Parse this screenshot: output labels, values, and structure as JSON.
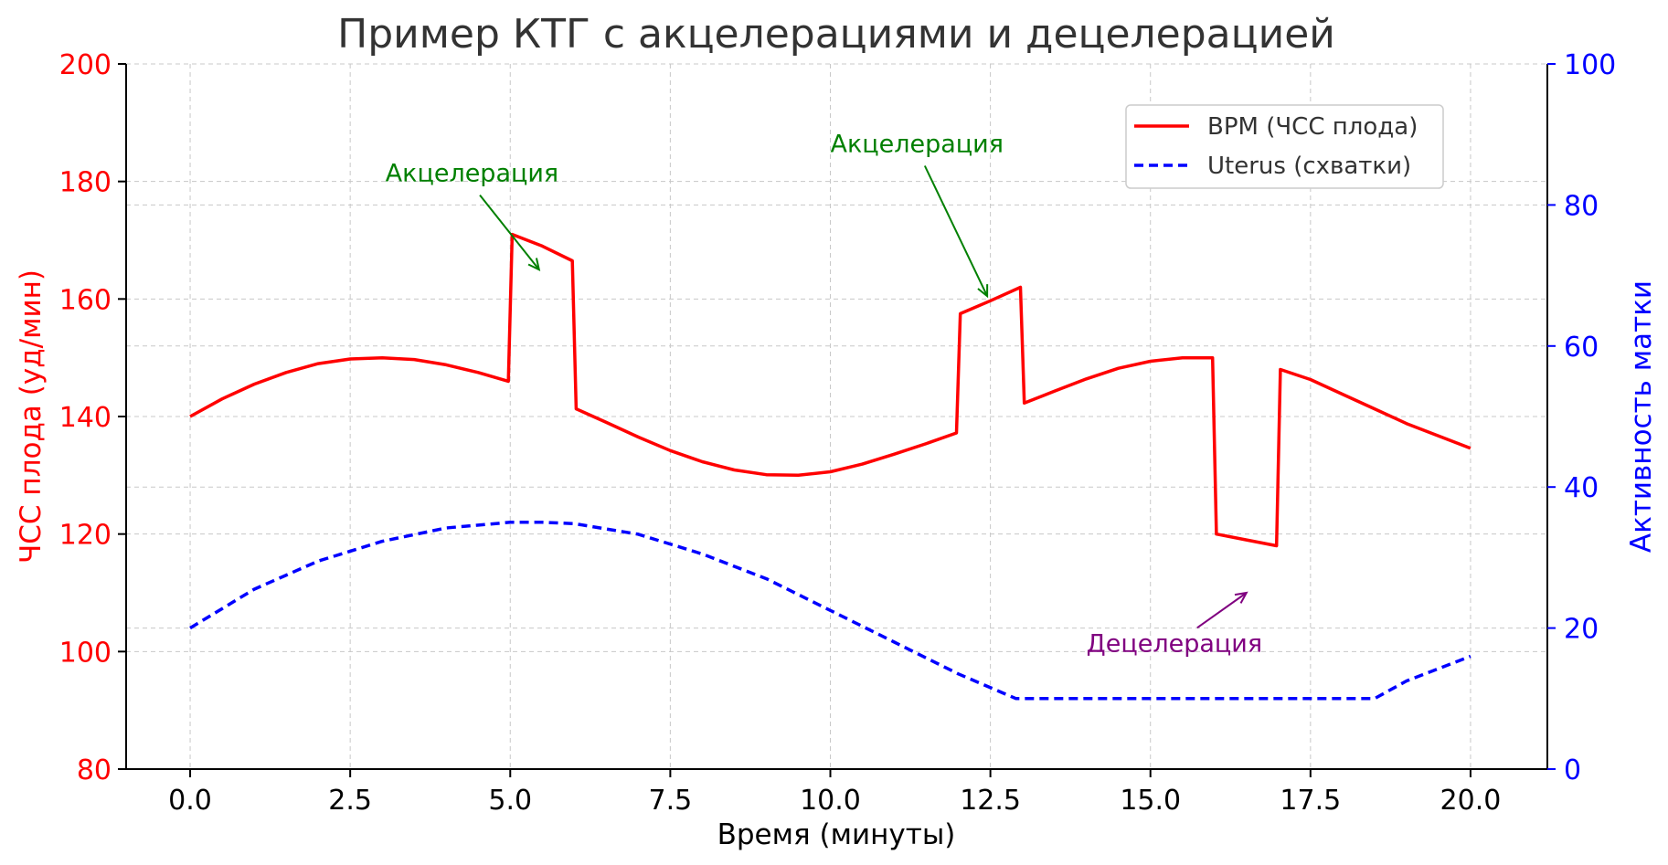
{
  "chart_data": {
    "type": "line",
    "title": "Пример КТГ с акцелерациями и децелерацией",
    "xlabel": "Время (минуты)",
    "ylabel_left": "ЧСС плода (уд/мин)",
    "ylabel_right": "Активность матки",
    "xlim": [
      -1,
      21.2
    ],
    "ylim_left": [
      80,
      200
    ],
    "ylim_right": [
      0,
      100
    ],
    "x_ticks": [
      0,
      2.5,
      5,
      7.5,
      10,
      12.5,
      15,
      17.5,
      20
    ],
    "x_tick_labels": [
      "0.0",
      "2.5",
      "5.0",
      "7.5",
      "10.0",
      "12.5",
      "15.0",
      "17.5",
      "20.0"
    ],
    "y_ticks_left": [
      80,
      100,
      120,
      140,
      160,
      180,
      200
    ],
    "y_ticks_right": [
      0,
      20,
      40,
      60,
      80,
      100
    ],
    "grid": true,
    "legend_position": "top-right",
    "colors": {
      "bpm": "#ff0000",
      "uterus": "#0000ff",
      "accel": "#008000",
      "decel": "#800080"
    },
    "series": [
      {
        "name": "BPM (ЧСС плода)",
        "axis": "left",
        "style": "solid",
        "x": [
          0,
          0.5,
          1,
          1.5,
          2,
          2.5,
          3,
          3.5,
          4,
          4.5,
          4.97,
          5.03,
          5.5,
          5.97,
          6.03,
          6.5,
          7,
          7.5,
          8,
          8.5,
          9,
          9.5,
          10,
          10.5,
          11,
          11.5,
          11.97,
          12.03,
          12.5,
          12.97,
          13.03,
          13.5,
          14,
          14.5,
          15,
          15.5,
          15.97,
          16.03,
          16.5,
          16.97,
          17.03,
          17.5,
          18,
          18.5,
          19,
          19.5,
          20
        ],
        "values": [
          140,
          143,
          145.5,
          147.5,
          149,
          149.8,
          150,
          149.7,
          148.8,
          147.5,
          146,
          171,
          169,
          166.5,
          141.3,
          139,
          136.5,
          134.2,
          132.3,
          130.9,
          130.1,
          130,
          130.6,
          131.9,
          133.6,
          135.4,
          137.2,
          157.5,
          159.7,
          162,
          142.3,
          144.3,
          146.4,
          148.2,
          149.4,
          150,
          150,
          120,
          119,
          118,
          148,
          146.3,
          143.8,
          141.3,
          138.8,
          136.7,
          134.6
        ]
      },
      {
        "name": "Uterus (схватки)",
        "axis": "right",
        "style": "dashed",
        "x": [
          0,
          1,
          2,
          3,
          4,
          5,
          5.5,
          6,
          7,
          8,
          9,
          10,
          11,
          12,
          12.9,
          14,
          15,
          16,
          17,
          18,
          18.5,
          19,
          20
        ],
        "values": [
          20,
          25.5,
          29.5,
          32.3,
          34.2,
          35,
          35,
          34.8,
          33.3,
          30.5,
          27,
          22.5,
          18,
          13.5,
          10,
          10,
          10,
          10,
          10,
          10,
          10,
          12.5,
          16
        ]
      }
    ],
    "annotations": [
      {
        "text": "Акцелерация",
        "color": "accel",
        "text_x": 3.05,
        "text_y": 180,
        "arrow_to_x": 5.45,
        "arrow_to_y": 165
      },
      {
        "text": "Акцелерация",
        "color": "accel",
        "text_x": 10,
        "text_y": 185,
        "arrow_to_x": 12.45,
        "arrow_to_y": 160.5
      },
      {
        "text": "Децелерация",
        "color": "decel",
        "text_x": 14,
        "text_y": 100,
        "arrow_to_x": 16.5,
        "arrow_to_y": 110
      }
    ]
  }
}
